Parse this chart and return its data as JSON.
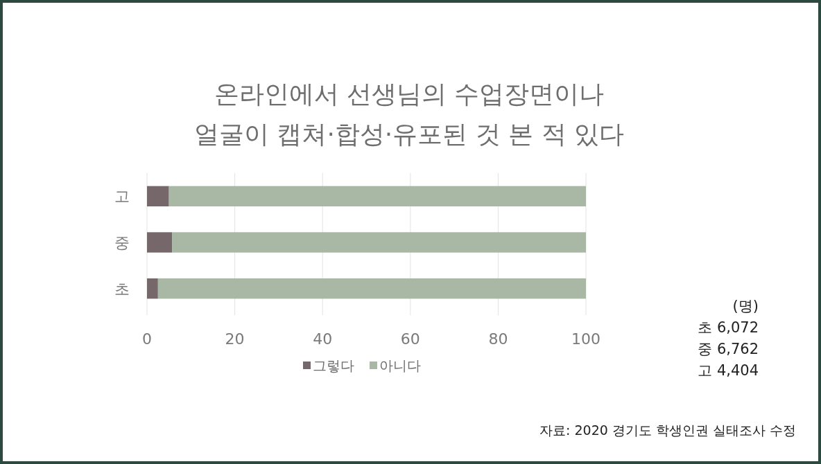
{
  "chart_data": {
    "type": "bar",
    "orientation": "horizontal",
    "stacked": true,
    "title": "온라인에서 선생님의 수업장면이나\n얼굴이 캡쳐·합성·유포된 것 본 적 있다",
    "categories": [
      "고",
      "중",
      "초"
    ],
    "series": [
      {
        "name": "그렇다",
        "color": "#76686a",
        "values": [
          5,
          5.7,
          2.5
        ]
      },
      {
        "name": "아니다",
        "color": "#a8b8a5",
        "values": [
          95,
          94.3,
          97.5
        ]
      }
    ],
    "xlim": [
      0,
      100
    ],
    "xticks": [
      0,
      20,
      40,
      60,
      80,
      100
    ],
    "grid": "x",
    "legend": "bottom",
    "annotations": [
      "(명)",
      "초 6,072",
      "중 6,762",
      "고 4,404",
      "자료: 2020 경기도 학생인권 실태조사 수정"
    ]
  }
}
